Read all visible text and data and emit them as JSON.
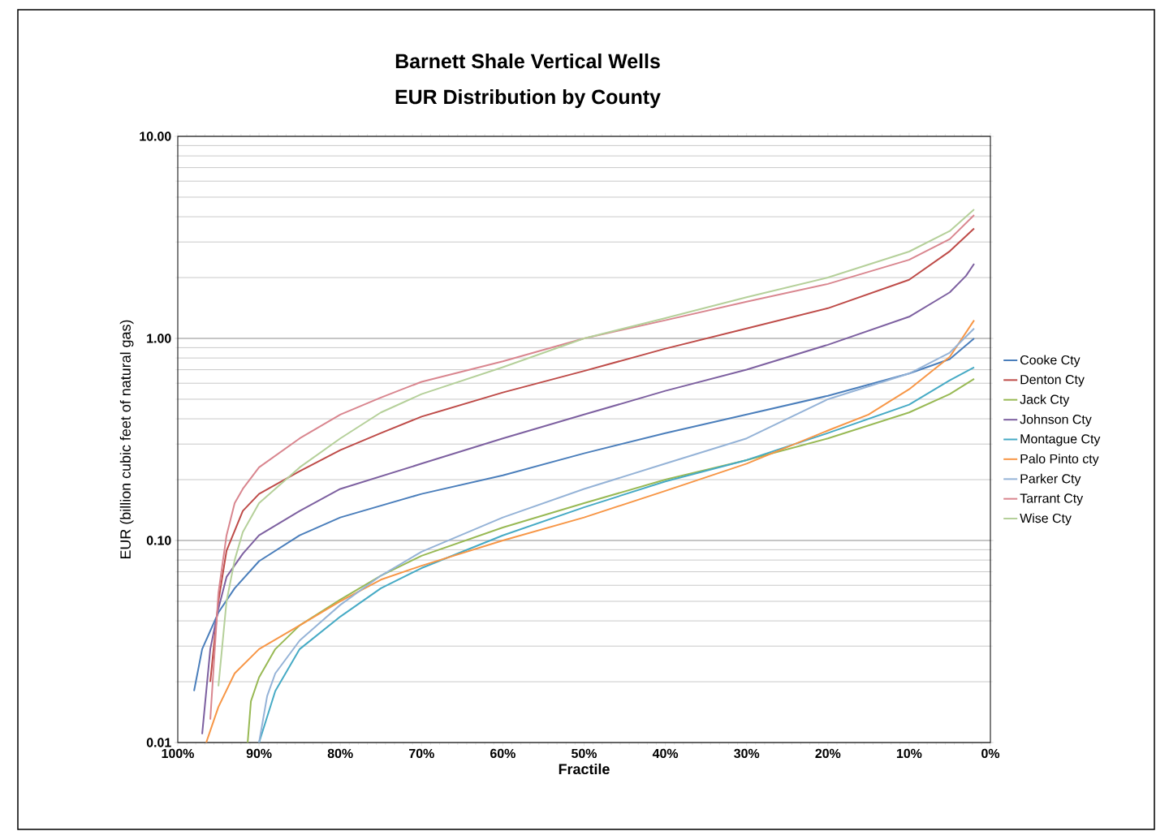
{
  "chart_data": {
    "type": "line",
    "title": "Barnett Shale Vertical Wells",
    "subtitle": "EUR Distribution by County",
    "xlabel": "Fractile",
    "ylabel": "EUR (billion cubic feet of natural gas)",
    "log": "y",
    "grid": "y",
    "legend": "right",
    "line_style": "solid",
    "marker": "none",
    "xlim": [
      100,
      0
    ],
    "xticks": [
      {
        "value": 100,
        "label": "100%"
      },
      {
        "value": 90,
        "label": "90%"
      },
      {
        "value": 80,
        "label": "80%"
      },
      {
        "value": 70,
        "label": "70%"
      },
      {
        "value": 60,
        "label": "60%"
      },
      {
        "value": 50,
        "label": "50%"
      },
      {
        "value": 40,
        "label": "40%"
      },
      {
        "value": 30,
        "label": "30%"
      },
      {
        "value": 20,
        "label": "20%"
      },
      {
        "value": 10,
        "label": "10%"
      },
      {
        "value": 0,
        "label": "0%"
      }
    ],
    "ylim": [
      0.01,
      10
    ],
    "yticks": [
      {
        "value": 0.01,
        "label": "0.01"
      },
      {
        "value": 0.1,
        "label": "0.10"
      },
      {
        "value": 1,
        "label": "1.00"
      },
      {
        "value": 10,
        "label": "10.00"
      }
    ],
    "series": [
      {
        "name": "Cooke Cty",
        "color": "#4a7ebb",
        "x": [
          98,
          97,
          95,
          93,
          90,
          85,
          80,
          70,
          60,
          50,
          40,
          30,
          20,
          10,
          5,
          2
        ],
        "values": [
          0.018,
          0.029,
          0.044,
          0.058,
          0.079,
          0.106,
          0.13,
          0.17,
          0.21,
          0.27,
          0.34,
          0.42,
          0.52,
          0.67,
          0.79,
          1.0
        ]
      },
      {
        "name": "Denton Cty",
        "color": "#be4b48",
        "x": [
          96,
          95,
          94,
          92,
          90,
          85,
          80,
          75,
          70,
          60,
          50,
          40,
          30,
          20,
          10,
          5,
          2
        ],
        "values": [
          0.02,
          0.05,
          0.089,
          0.14,
          0.17,
          0.22,
          0.28,
          0.34,
          0.41,
          0.54,
          0.69,
          0.89,
          1.12,
          1.41,
          1.95,
          2.7,
          3.5
        ]
      },
      {
        "name": "Jack Cty",
        "color": "#98b954",
        "x": [
          91.4,
          91,
          90,
          88,
          85,
          80,
          75,
          70,
          60,
          50,
          40,
          30,
          20,
          10,
          5,
          2
        ],
        "values": [
          0.01,
          0.016,
          0.021,
          0.029,
          0.038,
          0.051,
          0.067,
          0.084,
          0.116,
          0.153,
          0.2,
          0.25,
          0.32,
          0.43,
          0.53,
          0.63
        ]
      },
      {
        "name": "Johnson Cty",
        "color": "#7d60a0",
        "x": [
          97,
          96,
          95,
          94,
          92,
          90,
          85,
          80,
          70,
          60,
          50,
          40,
          30,
          20,
          10,
          5,
          3,
          2
        ],
        "values": [
          0.011,
          0.029,
          0.046,
          0.066,
          0.086,
          0.106,
          0.14,
          0.18,
          0.24,
          0.32,
          0.42,
          0.55,
          0.7,
          0.93,
          1.28,
          1.69,
          2.04,
          2.34
        ]
      },
      {
        "name": "Montague Cty",
        "color": "#46aac5",
        "x": [
          90,
          88,
          85,
          80,
          75,
          70,
          60,
          50,
          40,
          30,
          20,
          10,
          5,
          2
        ],
        "values": [
          0.01,
          0.018,
          0.029,
          0.042,
          0.058,
          0.073,
          0.106,
          0.146,
          0.196,
          0.25,
          0.34,
          0.47,
          0.62,
          0.72
        ]
      },
      {
        "name": "Palo Pinto cty",
        "color": "#f79646",
        "x": [
          96.5,
          95,
          93,
          90,
          85,
          80,
          75,
          70,
          60,
          50,
          40,
          30,
          20,
          15,
          10,
          5,
          2
        ],
        "values": [
          0.01,
          0.015,
          0.022,
          0.029,
          0.038,
          0.05,
          0.064,
          0.075,
          0.1,
          0.13,
          0.176,
          0.24,
          0.35,
          0.42,
          0.56,
          0.81,
          1.23
        ]
      },
      {
        "name": "Parker Cty",
        "color": "#95b3d7",
        "x": [
          90,
          89,
          88,
          85,
          80,
          75,
          70,
          60,
          50,
          40,
          30,
          20,
          10,
          5,
          2
        ],
        "values": [
          0.01,
          0.017,
          0.022,
          0.032,
          0.048,
          0.067,
          0.088,
          0.13,
          0.18,
          0.24,
          0.32,
          0.5,
          0.67,
          0.85,
          1.12
        ]
      },
      {
        "name": "Tarrant Cty",
        "color": "#d9868f",
        "x": [
          96,
          95,
          94,
          93,
          92,
          90,
          85,
          80,
          75,
          70,
          60,
          50,
          40,
          30,
          20,
          10,
          5,
          2
        ],
        "values": [
          0.013,
          0.055,
          0.106,
          0.153,
          0.18,
          0.23,
          0.32,
          0.42,
          0.51,
          0.61,
          0.77,
          1.0,
          1.23,
          1.52,
          1.86,
          2.45,
          3.1,
          4.08
        ]
      },
      {
        "name": "Wise Cty",
        "color": "#b5d09a",
        "x": [
          95,
          94,
          93,
          92,
          90,
          85,
          80,
          75,
          70,
          60,
          50,
          40,
          30,
          20,
          10,
          5,
          2
        ],
        "values": [
          0.019,
          0.05,
          0.08,
          0.11,
          0.153,
          0.23,
          0.32,
          0.43,
          0.53,
          0.72,
          1.0,
          1.26,
          1.6,
          2.0,
          2.69,
          3.4,
          4.35
        ]
      }
    ]
  }
}
